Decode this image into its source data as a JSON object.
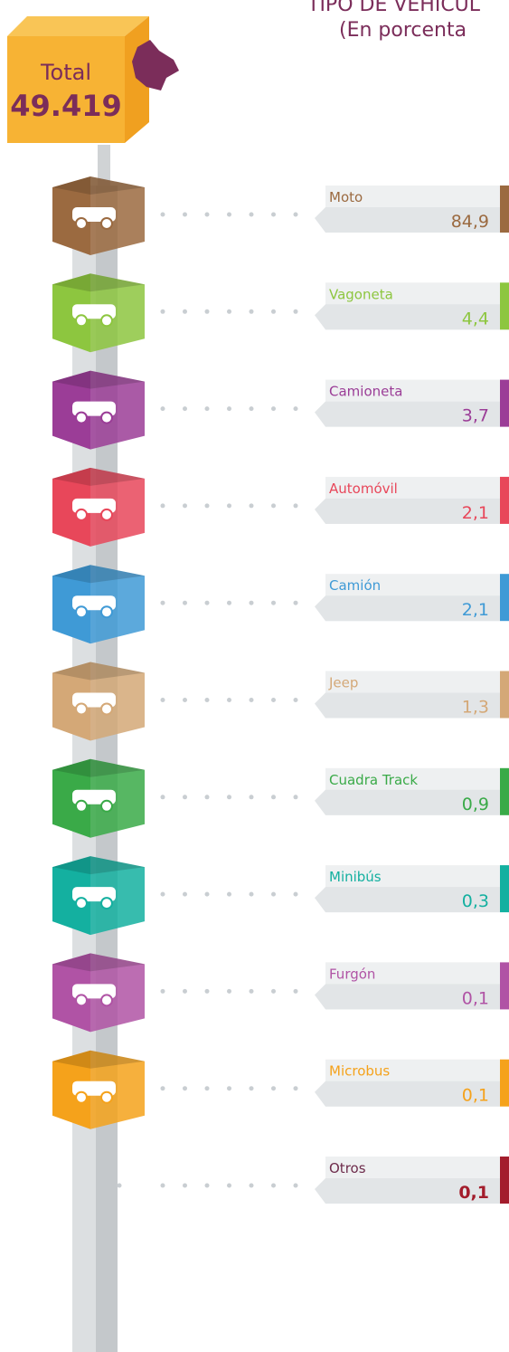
{
  "header": {
    "title": "TIPO DE VEHÍCUL",
    "subtitle": "(En porcenta"
  },
  "total": {
    "label": "Total",
    "value": "49.419"
  },
  "items": [
    {
      "name": "Moto",
      "value": "84,9",
      "color": "#9b6a40"
    },
    {
      "name": "Vagoneta",
      "value": "4,4",
      "color": "#8dc63f"
    },
    {
      "name": "Camioneta",
      "value": "3,7",
      "color": "#9b3d97"
    },
    {
      "name": "Automóvil",
      "value": "2,1",
      "color": "#e8475a"
    },
    {
      "name": "Camión",
      "value": "2,1",
      "color": "#3f9ad6"
    },
    {
      "name": "Jeep",
      "value": "1,3",
      "color": "#d4a877"
    },
    {
      "name": "Cuadra Track",
      "value": "0,9",
      "color": "#3aaa48"
    },
    {
      "name": "Minibús",
      "value": "0,3",
      "color": "#14b0a0"
    },
    {
      "name": "Furgón",
      "value": "0,1",
      "color": "#b053a5"
    },
    {
      "name": "Microbus",
      "value": "0,1",
      "color": "#f5a21b"
    },
    {
      "name": "Otros",
      "value": "0,1",
      "color": "#a31d2c",
      "icon": false
    }
  ]
}
